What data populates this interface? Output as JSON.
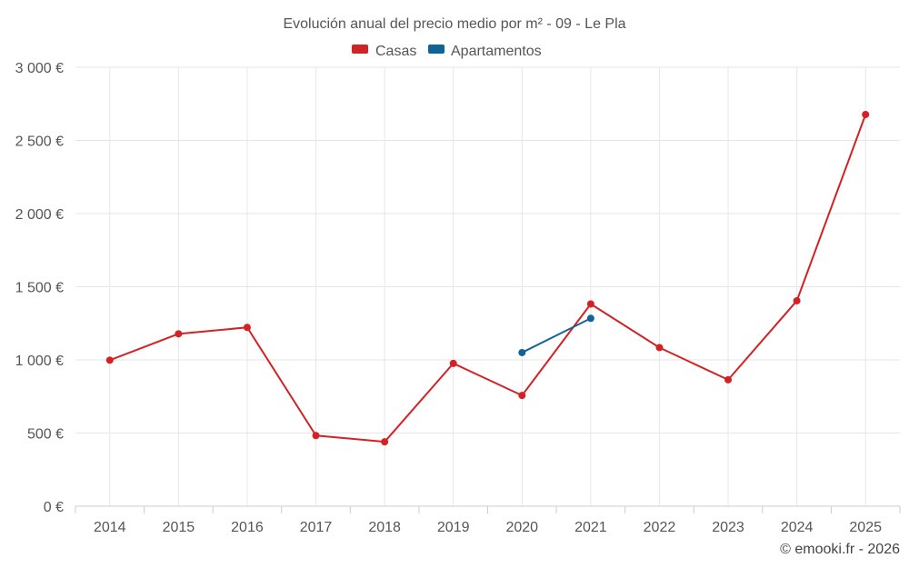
{
  "chart_data": {
    "type": "line",
    "title": "Evolución anual del precio medio por m² - 09 - Le Pla",
    "categories": [
      "2014",
      "2015",
      "2016",
      "2017",
      "2018",
      "2019",
      "2020",
      "2021",
      "2022",
      "2023",
      "2024",
      "2025"
    ],
    "series": [
      {
        "name": "Casas",
        "color": "#d32124",
        "values": [
          998,
          1178,
          1222,
          483,
          440,
          976,
          757,
          1382,
          1084,
          864,
          1404,
          2677
        ]
      },
      {
        "name": "Apartamentos",
        "color": "#0f6497",
        "values": [
          null,
          null,
          null,
          null,
          null,
          null,
          1050,
          1284,
          null,
          null,
          null,
          null
        ]
      }
    ],
    "ylim": [
      0,
      3000
    ],
    "yticks": [
      {
        "value": 0,
        "label": "0 €"
      },
      {
        "value": 500,
        "label": "500 €"
      },
      {
        "value": 1000,
        "label": "1 000 €"
      },
      {
        "value": 1500,
        "label": "1 500 €"
      },
      {
        "value": 2000,
        "label": "2 000 €"
      },
      {
        "value": 2500,
        "label": "2 500 €"
      },
      {
        "value": 3000,
        "label": "3 000 €"
      }
    ],
    "xlabel": "",
    "ylabel": "",
    "legend_position": "top-center",
    "grid": true
  },
  "credit": "© emooki.fr - 2026"
}
